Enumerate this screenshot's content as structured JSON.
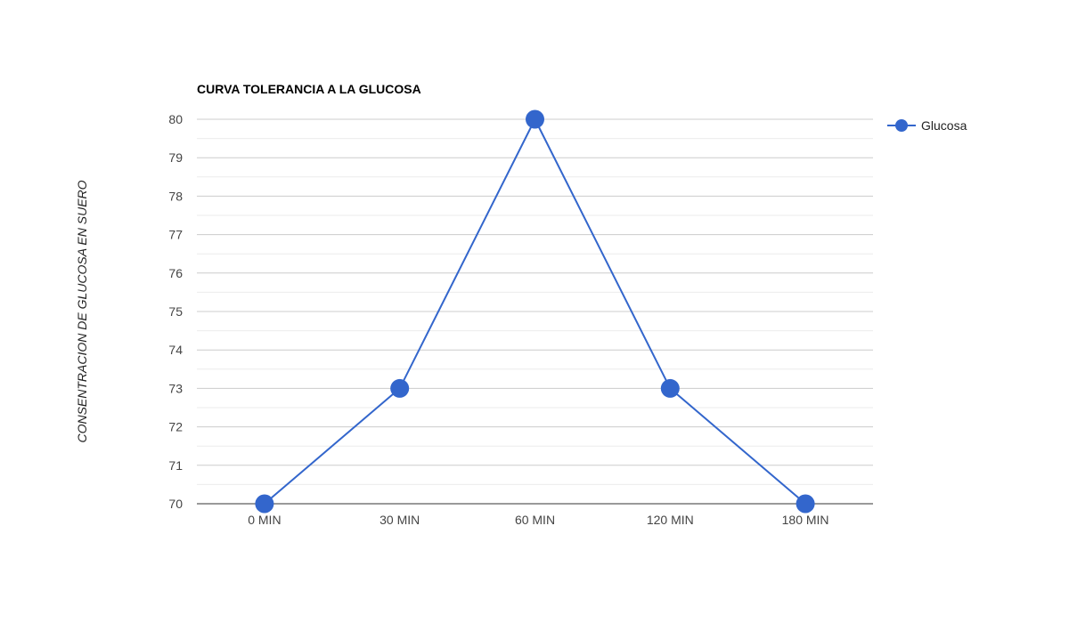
{
  "chart_data": {
    "type": "line",
    "title": "CURVA TOLERANCIA A LA GLUCOSA",
    "xlabel": "",
    "ylabel": "CONSENTRACION DE GLUCOSA EN SUERO",
    "categories": [
      "0 MIN",
      "30 MIN",
      "60 MIN",
      "120 MIN",
      "180 MIN"
    ],
    "series": [
      {
        "name": "Glucosa",
        "values": [
          70,
          73,
          80,
          73,
          70
        ],
        "color": "#3366cc"
      }
    ],
    "ylim": [
      70,
      80
    ],
    "yticks": [
      70,
      71,
      72,
      73,
      74,
      75,
      76,
      77,
      78,
      79,
      80
    ],
    "grid": true,
    "legend_position": "right"
  }
}
